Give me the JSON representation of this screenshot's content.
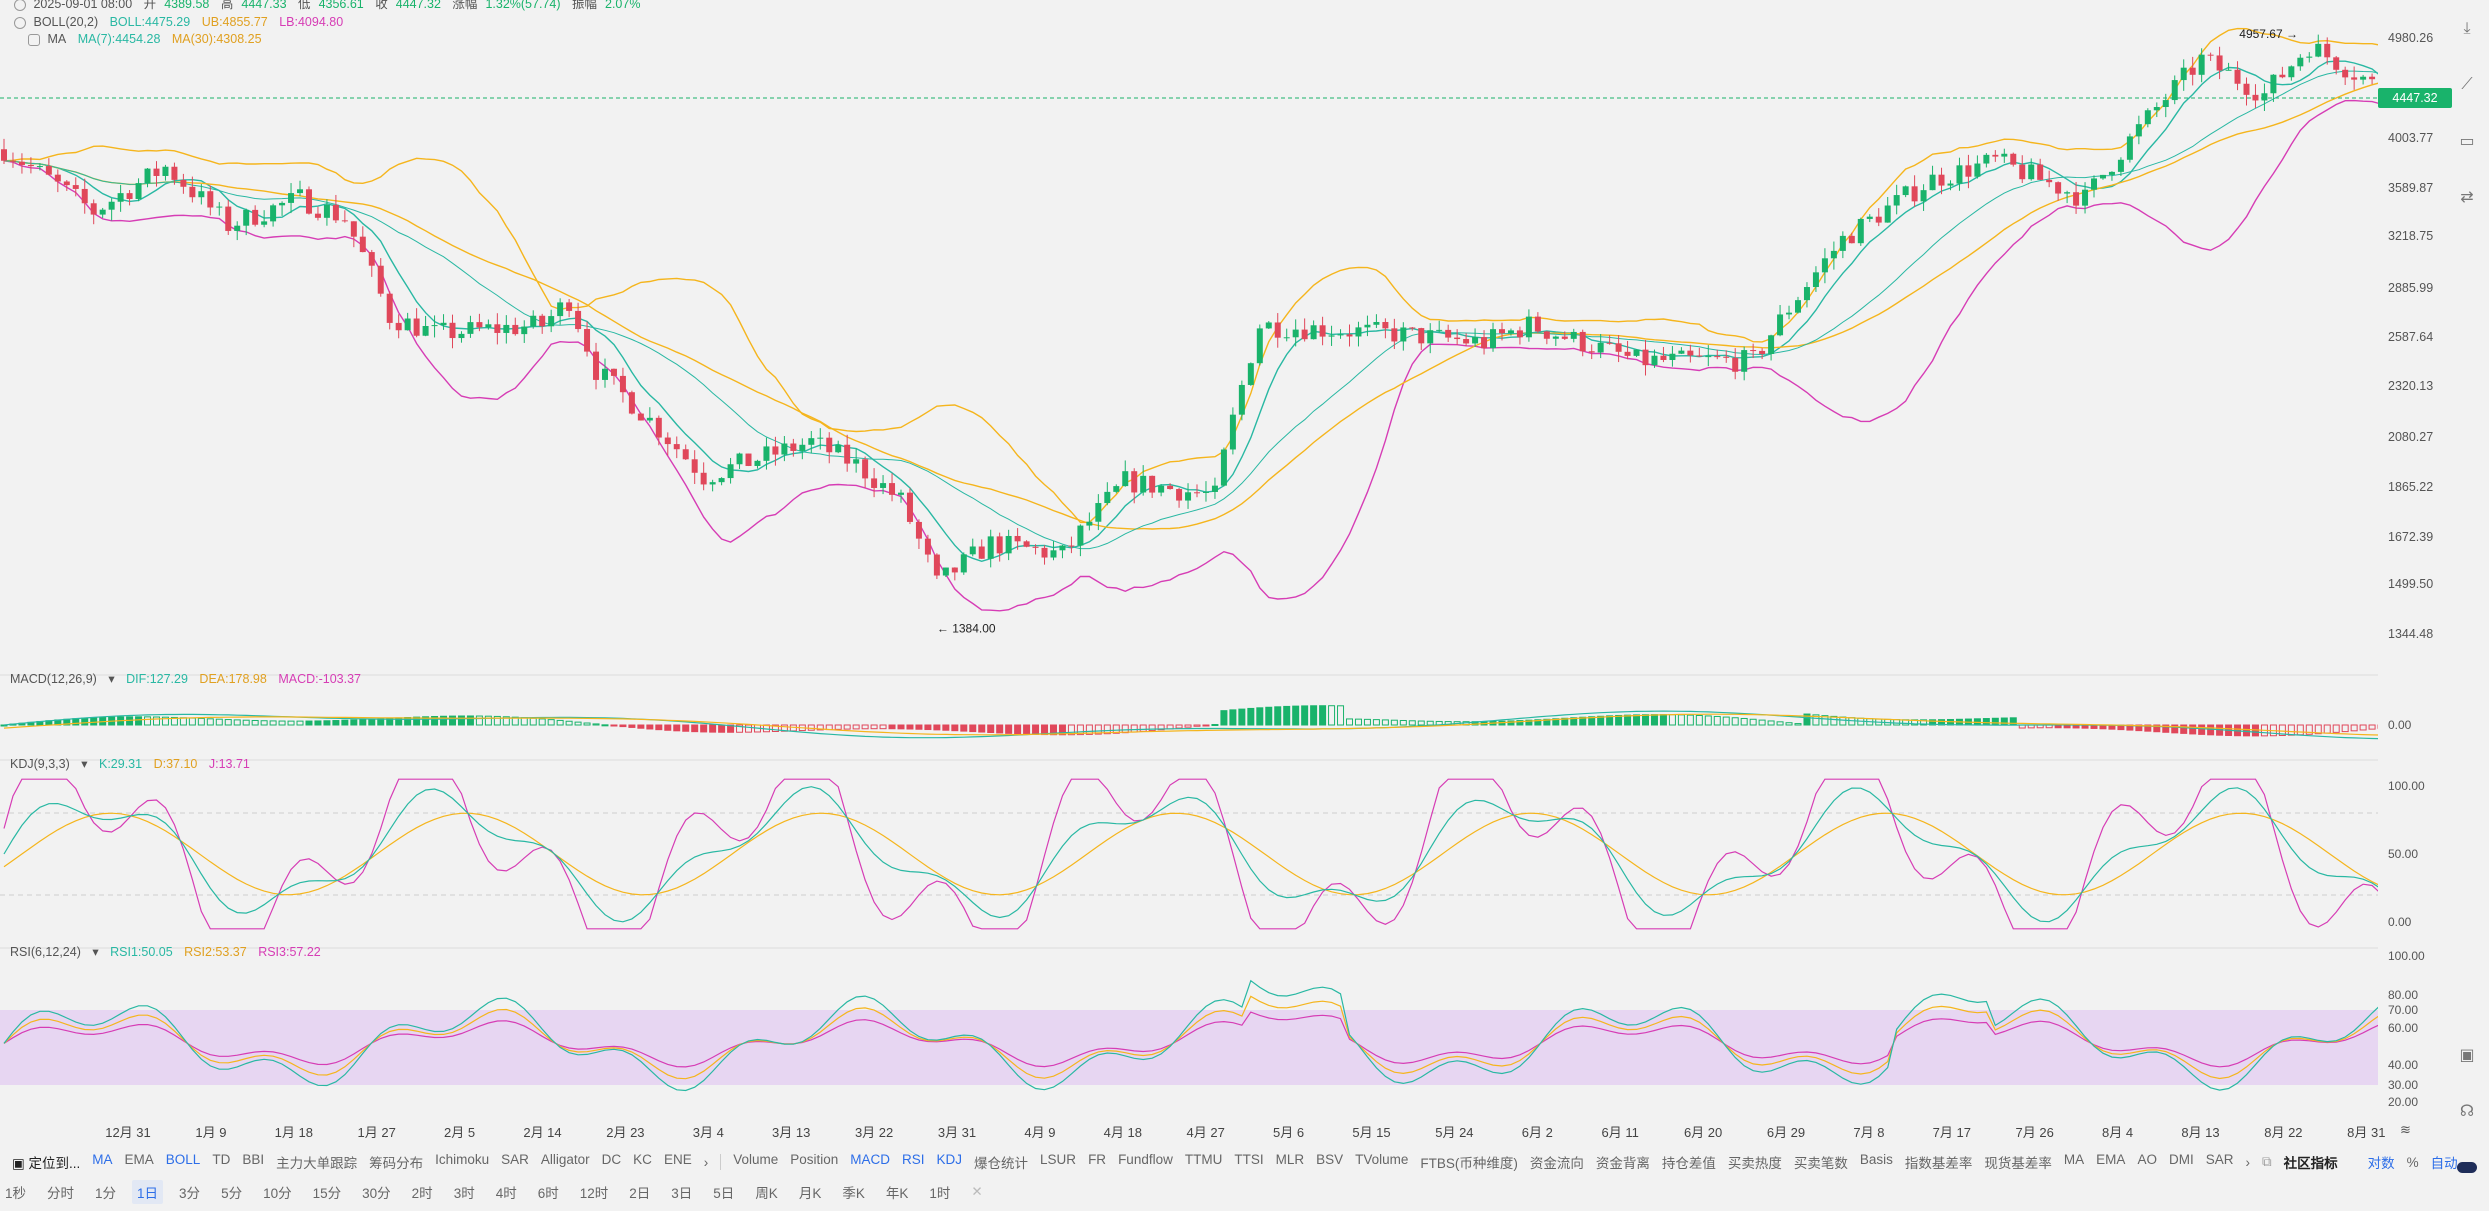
{
  "ohlc": {
    "date": "2025-09-01 08:00",
    "open_label": "开",
    "open": "4389.58",
    "high_label": "高",
    "high": "4447.33",
    "low_label": "低",
    "low": "4356.61",
    "close_label": "收",
    "close": "4447.32",
    "chg_label": "涨幅",
    "chg": "1.32%(57.74)",
    "amp_label": "振幅",
    "amp": "2.07%"
  },
  "boll": {
    "name": "BOLL(20,2)",
    "mid": "BOLL:4475.29",
    "ub": "UB:4855.77",
    "lb": "LB:4094.80"
  },
  "ma": {
    "name": "MA",
    "ma7": "MA(7):4454.28",
    "ma30": "MA(30):4308.25"
  },
  "price_axis": [
    "4980.26",
    "4003.77",
    "3589.87",
    "3218.75",
    "2885.99",
    "2587.64",
    "2320.13",
    "2080.27",
    "1865.22",
    "1672.39",
    "1499.50",
    "1344.48"
  ],
  "last_price": "4447.32",
  "high_mark": "4957.67",
  "low_mark": "1384.00",
  "macd": {
    "name": "MACD(12,26,9)",
    "dif": "DIF:127.29",
    "dea": "DEA:178.98",
    "macd": "MACD:-103.37",
    "axis": [
      "0.00"
    ]
  },
  "kdj": {
    "name": "KDJ(9,3,3)",
    "k": "K:29.31",
    "d": "D:37.10",
    "j": "J:13.71",
    "axis": [
      "100.00",
      "50.00",
      "0.00"
    ]
  },
  "rsi": {
    "name": "RSI(6,12,24)",
    "r1": "RSI1:50.05",
    "r2": "RSI2:53.37",
    "r3": "RSI3:57.22",
    "axis": [
      "100.00",
      "80.00",
      "70.00",
      "60.00",
      "40.00",
      "30.00",
      "20.00"
    ]
  },
  "x_labels": [
    "12月 31",
    "1月 9",
    "1月 18",
    "1月 27",
    "2月 5",
    "2月 14",
    "2月 23",
    "3月 4",
    "3月 13",
    "3月 22",
    "3月 31",
    "4月 9",
    "4月 18",
    "4月 27",
    "5月 6",
    "5月 15",
    "5月 24",
    "6月 2",
    "6月 11",
    "6月 20",
    "6月 29",
    "7月 8",
    "7月 17",
    "7月 26",
    "8月 4",
    "8月 13",
    "8月 22",
    "8月 31"
  ],
  "indicator_bar": {
    "locate": "定位到...",
    "items": [
      "MA",
      "EMA",
      "BOLL",
      "TD",
      "BBI",
      "主力大单跟踪",
      "筹码分布",
      "Ichimoku",
      "SAR",
      "Alligator",
      "DC",
      "KC",
      "ENE"
    ],
    "sub_items": [
      "Volume",
      "Position",
      "MACD",
      "RSI",
      "KDJ",
      "爆仓统计",
      "LSUR",
      "FR",
      "Fundflow",
      "TTMU",
      "TTSI",
      "MLR",
      "BSV",
      "TVolume",
      "FTBS(币种维度)",
      "资金流向",
      "资金背离",
      "持仓差值",
      "买卖热度",
      "买卖笔数",
      "Basis",
      "指数基差率",
      "现货基差率",
      "MA",
      "EMA",
      "AO",
      "DMI",
      "SAR"
    ],
    "community": "社区指标",
    "pair": "对数",
    "pct": "%",
    "auto": "自动"
  },
  "intervals": [
    "1秒",
    "分时",
    "1分",
    "1日",
    "3分",
    "5分",
    "10分",
    "15分",
    "30分",
    "2时",
    "3时",
    "4时",
    "6时",
    "12时",
    "2日",
    "3日",
    "5日",
    "周K",
    "月K",
    "季K",
    "年K",
    "1时"
  ],
  "active_interval": "1日",
  "colors": {
    "up": "#19b36b",
    "down": "#e0475a",
    "mid": "#29b8a3",
    "ub": "#f5b51d",
    "lb": "#d63db5",
    "k": "#29b8a3",
    "d": "#f5b51d",
    "j": "#d63db5",
    "rsi_band": "#e7d6f2"
  }
}
